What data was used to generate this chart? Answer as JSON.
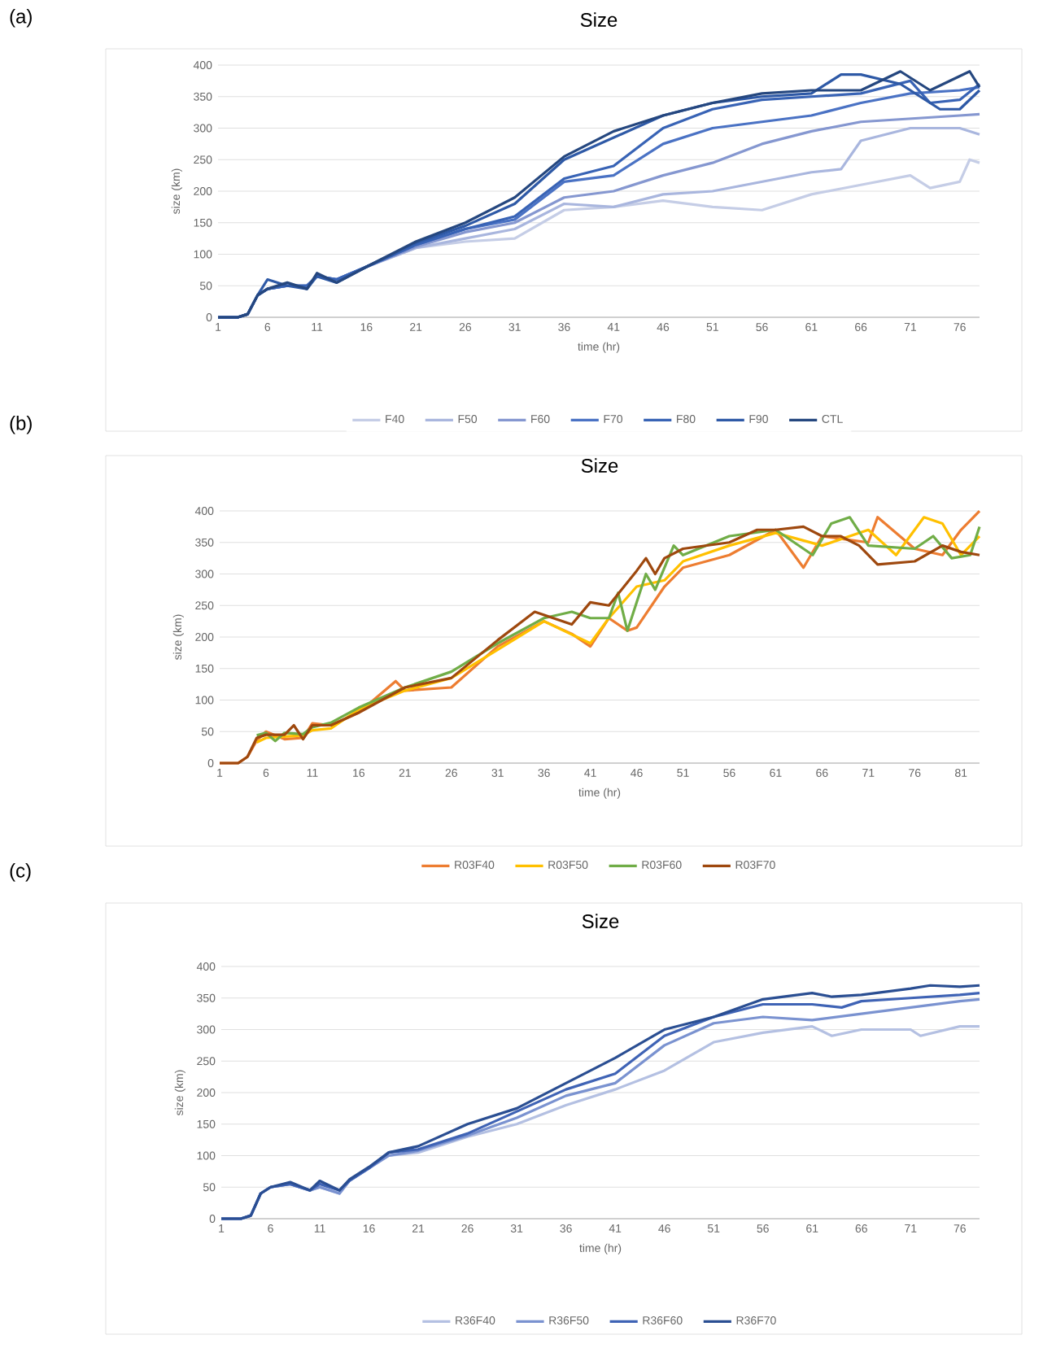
{
  "chart_data": [
    {
      "type": "line",
      "title": "Size",
      "xlabel": "time (hr)",
      "ylabel": "size (km)",
      "annotations": [
        "(a)"
      ],
      "xlim": [
        1,
        78
      ],
      "ylim": [
        0,
        400
      ],
      "xticks": [
        1,
        6,
        11,
        16,
        21,
        26,
        31,
        36,
        41,
        46,
        51,
        56,
        61,
        66,
        71,
        76
      ],
      "yticks": [
        0,
        50,
        100,
        150,
        200,
        250,
        300,
        350,
        400
      ],
      "grid": "y",
      "legend": "bottom",
      "series": [
        {
          "name": "F40",
          "color": "#c5cde6",
          "x": [
            1,
            3,
            4,
            5,
            6,
            8,
            10,
            11,
            13,
            16,
            21,
            26,
            31,
            36,
            41,
            46,
            51,
            56,
            61,
            66,
            71,
            73,
            76,
            77,
            78
          ],
          "values": [
            0,
            0,
            5,
            35,
            45,
            50,
            50,
            65,
            60,
            80,
            110,
            120,
            125,
            170,
            175,
            185,
            175,
            170,
            195,
            210,
            225,
            205,
            215,
            250,
            245
          ]
        },
        {
          "name": "F50",
          "color": "#a9b6de",
          "x": [
            1,
            3,
            4,
            5,
            6,
            8,
            10,
            11,
            13,
            16,
            21,
            26,
            31,
            36,
            41,
            46,
            51,
            56,
            61,
            64,
            66,
            71,
            76,
            78
          ],
          "values": [
            0,
            0,
            5,
            35,
            45,
            50,
            50,
            65,
            60,
            80,
            110,
            125,
            140,
            180,
            175,
            195,
            200,
            215,
            230,
            235,
            280,
            300,
            300,
            290
          ]
        },
        {
          "name": "F60",
          "color": "#8597d0",
          "x": [
            1,
            3,
            4,
            5,
            6,
            8,
            10,
            11,
            13,
            16,
            21,
            26,
            31,
            36,
            41,
            46,
            51,
            56,
            61,
            66,
            71,
            76,
            78
          ],
          "values": [
            0,
            0,
            5,
            35,
            45,
            50,
            50,
            65,
            60,
            80,
            112,
            135,
            150,
            190,
            200,
            225,
            245,
            275,
            295,
            310,
            315,
            320,
            322
          ]
        },
        {
          "name": "F70",
          "color": "#4a72c4",
          "x": [
            1,
            3,
            4,
            5,
            6,
            8,
            10,
            11,
            13,
            16,
            21,
            26,
            31,
            36,
            41,
            46,
            51,
            56,
            61,
            66,
            71,
            76,
            78
          ],
          "values": [
            0,
            0,
            5,
            35,
            45,
            50,
            50,
            65,
            60,
            80,
            115,
            140,
            155,
            215,
            225,
            275,
            300,
            310,
            320,
            340,
            355,
            360,
            365
          ]
        },
        {
          "name": "F80",
          "color": "#3863b5",
          "x": [
            1,
            3,
            4,
            5,
            6,
            8,
            10,
            11,
            13,
            16,
            21,
            26,
            31,
            36,
            41,
            46,
            51,
            56,
            61,
            66,
            71,
            73,
            76,
            78
          ],
          "values": [
            0,
            0,
            5,
            35,
            45,
            50,
            50,
            65,
            60,
            80,
            115,
            140,
            160,
            220,
            240,
            300,
            330,
            345,
            350,
            355,
            375,
            340,
            345,
            370
          ]
        },
        {
          "name": "F90",
          "color": "#2e59a6",
          "x": [
            1,
            3,
            4,
            5,
            6,
            8,
            10,
            11,
            13,
            16,
            21,
            26,
            31,
            36,
            41,
            46,
            51,
            56,
            61,
            64,
            66,
            70,
            74,
            76,
            78
          ],
          "values": [
            0,
            0,
            5,
            35,
            60,
            50,
            45,
            65,
            55,
            80,
            118,
            145,
            180,
            250,
            285,
            320,
            340,
            350,
            355,
            385,
            385,
            370,
            330,
            330,
            360
          ]
        },
        {
          "name": "CTL",
          "color": "#25477f",
          "x": [
            1,
            3,
            4,
            5,
            6,
            8,
            10,
            11,
            13,
            16,
            21,
            26,
            31,
            36,
            41,
            46,
            51,
            56,
            61,
            66,
            70,
            73,
            77,
            78
          ],
          "values": [
            0,
            0,
            5,
            35,
            45,
            55,
            45,
            70,
            55,
            80,
            120,
            150,
            190,
            255,
            295,
            320,
            340,
            355,
            360,
            360,
            390,
            360,
            390,
            365
          ]
        }
      ]
    },
    {
      "type": "line",
      "title": "Size",
      "xlabel": "time (hr)",
      "ylabel": "size (km)",
      "annotations": [
        "(b)"
      ],
      "xlim": [
        1,
        83
      ],
      "ylim": [
        0,
        400
      ],
      "xticks": [
        1,
        6,
        11,
        16,
        21,
        26,
        31,
        36,
        41,
        46,
        51,
        56,
        61,
        66,
        71,
        76,
        81
      ],
      "yticks": [
        0,
        50,
        100,
        150,
        200,
        250,
        300,
        350,
        400
      ],
      "grid": "y",
      "legend": "bottom",
      "series": [
        {
          "name": "R03F40",
          "color": "#ed7d31",
          "x": [
            1,
            3,
            4,
            5,
            6,
            8,
            10,
            11,
            13,
            16,
            20,
            21,
            26,
            31,
            36,
            39,
            41,
            43,
            45,
            46,
            49,
            51,
            56,
            61,
            64,
            66,
            71,
            72,
            76,
            79,
            81,
            83
          ],
          "values": [
            0,
            0,
            10,
            36,
            50,
            38,
            40,
            63,
            60,
            80,
            130,
            115,
            120,
            185,
            225,
            205,
            185,
            230,
            210,
            215,
            280,
            310,
            330,
            370,
            310,
            360,
            350,
            390,
            340,
            330,
            370,
            400
          ]
        },
        {
          "name": "R03F50",
          "color": "#ffc000",
          "x": [
            5,
            6,
            8,
            10,
            11,
            13,
            16,
            21,
            26,
            31,
            36,
            41,
            43,
            46,
            49,
            51,
            56,
            61,
            66,
            71,
            74,
            77,
            79,
            81,
            83
          ],
          "values": [
            33,
            40,
            42,
            44,
            52,
            55,
            85,
            115,
            135,
            180,
            225,
            190,
            230,
            280,
            290,
            320,
            345,
            365,
            345,
            370,
            330,
            390,
            380,
            330,
            360
          ]
        },
        {
          "name": "R03F60",
          "color": "#70ad47",
          "x": [
            5,
            6,
            7,
            8,
            10,
            11,
            13,
            16,
            21,
            26,
            31,
            36,
            39,
            41,
            43,
            44,
            45,
            47,
            48,
            50,
            51,
            56,
            61,
            65,
            67,
            69,
            71,
            76,
            78,
            80,
            82,
            83
          ],
          "values": [
            44,
            48,
            35,
            48,
            46,
            57,
            64,
            88,
            120,
            145,
            190,
            230,
            240,
            230,
            230,
            270,
            210,
            300,
            275,
            345,
            330,
            360,
            370,
            330,
            380,
            390,
            345,
            340,
            360,
            325,
            330,
            375
          ]
        },
        {
          "name": "R03F70",
          "color": "#9e480e",
          "x": [
            1,
            3,
            4,
            5,
            6,
            8,
            9,
            10,
            11,
            13,
            16,
            21,
            26,
            31,
            35,
            39,
            41,
            43,
            46,
            47,
            48,
            49,
            51,
            56,
            59,
            61,
            64,
            66,
            68,
            70,
            72,
            76,
            79,
            81,
            83
          ],
          "values": [
            0,
            0,
            10,
            40,
            45,
            45,
            60,
            38,
            60,
            60,
            80,
            120,
            135,
            195,
            240,
            220,
            255,
            250,
            305,
            325,
            300,
            325,
            340,
            350,
            370,
            370,
            375,
            360,
            360,
            345,
            315,
            320,
            345,
            335,
            330
          ]
        }
      ]
    },
    {
      "type": "line",
      "title": "Size",
      "xlabel": "time (hr)",
      "ylabel": "size (km)",
      "annotations": [
        "(c)"
      ],
      "xlim": [
        1,
        78
      ],
      "ylim": [
        0,
        400
      ],
      "xticks": [
        1,
        6,
        11,
        16,
        21,
        26,
        31,
        36,
        41,
        46,
        51,
        56,
        61,
        66,
        71,
        76
      ],
      "yticks": [
        0,
        50,
        100,
        150,
        200,
        250,
        300,
        350,
        400
      ],
      "grid": "y",
      "legend": "bottom",
      "series": [
        {
          "name": "R36F40",
          "color": "#b4c0e2",
          "x": [
            1,
            3,
            4,
            5,
            6,
            8,
            10,
            11,
            13,
            14,
            16,
            18,
            21,
            26,
            31,
            36,
            41,
            46,
            51,
            56,
            61,
            63,
            66,
            71,
            72,
            76,
            78
          ],
          "values": [
            0,
            0,
            5,
            40,
            50,
            55,
            45,
            50,
            40,
            60,
            80,
            100,
            105,
            130,
            150,
            180,
            205,
            235,
            280,
            295,
            305,
            290,
            300,
            300,
            290,
            305,
            305
          ]
        },
        {
          "name": "R36F50",
          "color": "#7a92d0",
          "x": [
            1,
            3,
            4,
            5,
            6,
            8,
            10,
            11,
            13,
            14,
            16,
            18,
            21,
            26,
            31,
            36,
            41,
            46,
            51,
            56,
            61,
            66,
            71,
            76,
            78
          ],
          "values": [
            0,
            0,
            5,
            40,
            50,
            55,
            45,
            50,
            40,
            60,
            80,
            100,
            108,
            132,
            160,
            195,
            215,
            275,
            310,
            320,
            315,
            325,
            335,
            345,
            348
          ]
        },
        {
          "name": "R36F60",
          "color": "#3f63b5",
          "x": [
            1,
            3,
            4,
            5,
            6,
            8,
            10,
            11,
            13,
            14,
            16,
            18,
            21,
            26,
            31,
            36,
            41,
            46,
            51,
            56,
            61,
            64,
            66,
            71,
            76,
            78
          ],
          "values": [
            0,
            0,
            5,
            40,
            50,
            55,
            45,
            55,
            45,
            60,
            80,
            105,
            110,
            135,
            170,
            205,
            230,
            290,
            320,
            340,
            340,
            335,
            345,
            350,
            355,
            358
          ]
        },
        {
          "name": "R36F70",
          "color": "#2a4e92",
          "x": [
            1,
            3,
            4,
            5,
            6,
            8,
            10,
            11,
            13,
            14,
            16,
            18,
            21,
            26,
            31,
            36,
            41,
            46,
            51,
            56,
            61,
            63,
            66,
            71,
            73,
            76,
            78
          ],
          "values": [
            0,
            0,
            5,
            40,
            50,
            58,
            45,
            60,
            45,
            62,
            82,
            105,
            115,
            150,
            175,
            215,
            255,
            300,
            320,
            348,
            358,
            352,
            355,
            365,
            370,
            368,
            370
          ]
        }
      ]
    }
  ]
}
